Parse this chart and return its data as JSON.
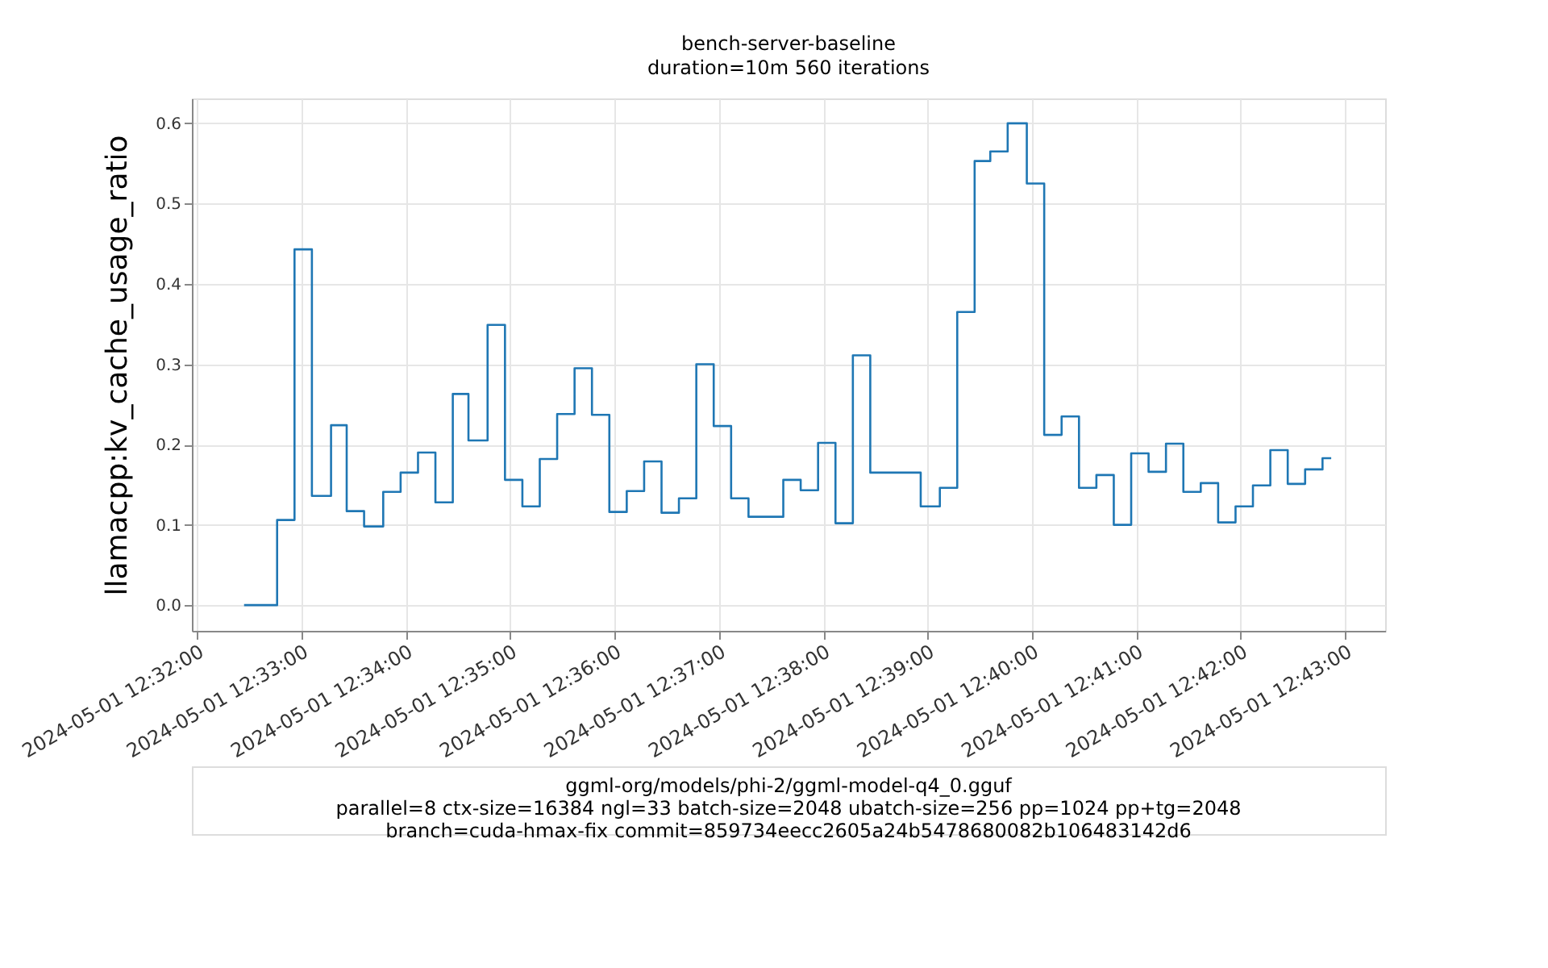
{
  "chart_data": {
    "type": "step",
    "title": "bench-server-baseline",
    "subtitle": "duration=10m 560 iterations",
    "ylabel": "llamacpp:kv_cache_usage_ratio",
    "annotations": [
      "ggml-org/models/phi-2/ggml-model-q4_0.gguf",
      "parallel=8 ctx-size=16384 ngl=33 batch-size=2048 ubatch-size=256 pp=1024 pp+tg=2048",
      "branch=cuda-hmax-fix commit=859734eecc2605a24b5478680082b106483142d6"
    ],
    "x": [
      "2024-05-01T12:32:27",
      "2024-05-01T12:32:46",
      "2024-05-01T12:32:56",
      "2024-05-01T12:33:06",
      "2024-05-01T12:33:17",
      "2024-05-01T12:33:26",
      "2024-05-01T12:33:36",
      "2024-05-01T12:33:47",
      "2024-05-01T12:33:57",
      "2024-05-01T12:34:07",
      "2024-05-01T12:34:17",
      "2024-05-01T12:34:27",
      "2024-05-01T12:34:36",
      "2024-05-01T12:34:47",
      "2024-05-01T12:34:57",
      "2024-05-01T12:35:07",
      "2024-05-01T12:35:17",
      "2024-05-01T12:35:27",
      "2024-05-01T12:35:37",
      "2024-05-01T12:35:47",
      "2024-05-01T12:35:57",
      "2024-05-01T12:36:07",
      "2024-05-01T12:36:17",
      "2024-05-01T12:36:27",
      "2024-05-01T12:36:37",
      "2024-05-01T12:36:47",
      "2024-05-01T12:36:57",
      "2024-05-01T12:37:07",
      "2024-05-01T12:37:17",
      "2024-05-01T12:37:37",
      "2024-05-01T12:37:47",
      "2024-05-01T12:37:57",
      "2024-05-01T12:38:07",
      "2024-05-01T12:38:17",
      "2024-05-01T12:38:27",
      "2024-05-01T12:38:56",
      "2024-05-01T12:39:07",
      "2024-05-01T12:39:17",
      "2024-05-01T12:39:27",
      "2024-05-01T12:39:36",
      "2024-05-01T12:39:46",
      "2024-05-01T12:39:57",
      "2024-05-01T12:40:07",
      "2024-05-01T12:40:17",
      "2024-05-01T12:40:27",
      "2024-05-01T12:40:37",
      "2024-05-01T12:40:47",
      "2024-05-01T12:40:57",
      "2024-05-01T12:41:07",
      "2024-05-01T12:41:17",
      "2024-05-01T12:41:27",
      "2024-05-01T12:41:37",
      "2024-05-01T12:41:47",
      "2024-05-01T12:41:57",
      "2024-05-01T12:42:07",
      "2024-05-01T12:42:17",
      "2024-05-01T12:42:27",
      "2024-05-01T12:42:37",
      "2024-05-01T12:42:47",
      "2024-05-01T12:42:52"
    ],
    "series": [
      {
        "color": "#1f77b4",
        "values": [
          0.0,
          0.106,
          0.443,
          0.136,
          0.224,
          0.117,
          0.098,
          0.141,
          0.165,
          0.19,
          0.128,
          0.263,
          0.205,
          0.349,
          0.156,
          0.123,
          0.182,
          0.238,
          0.295,
          0.237,
          0.116,
          0.142,
          0.179,
          0.115,
          0.133,
          0.3,
          0.223,
          0.133,
          0.11,
          0.156,
          0.143,
          0.202,
          0.102,
          0.311,
          0.165,
          0.123,
          0.146,
          0.365,
          0.553,
          0.565,
          0.6,
          0.525,
          0.212,
          0.235,
          0.146,
          0.162,
          0.1,
          0.189,
          0.166,
          0.201,
          0.141,
          0.152,
          0.103,
          0.123,
          0.149,
          0.193,
          0.151,
          0.169,
          0.183,
          0.183
        ]
      }
    ],
    "xlim": [
      "2024-05-01T12:31:57",
      "2024-05-01T12:43:23"
    ],
    "xticks": [
      {
        "value": "2024-05-01T12:32:00",
        "label": "2024-05-01 12:32:00"
      },
      {
        "value": "2024-05-01T12:33:00",
        "label": "2024-05-01 12:33:00"
      },
      {
        "value": "2024-05-01T12:34:00",
        "label": "2024-05-01 12:34:00"
      },
      {
        "value": "2024-05-01T12:35:00",
        "label": "2024-05-01 12:35:00"
      },
      {
        "value": "2024-05-01T12:36:00",
        "label": "2024-05-01 12:36:00"
      },
      {
        "value": "2024-05-01T12:37:00",
        "label": "2024-05-01 12:37:00"
      },
      {
        "value": "2024-05-01T12:38:00",
        "label": "2024-05-01 12:38:00"
      },
      {
        "value": "2024-05-01T12:39:00",
        "label": "2024-05-01 12:39:00"
      },
      {
        "value": "2024-05-01T12:40:00",
        "label": "2024-05-01 12:40:00"
      },
      {
        "value": "2024-05-01T12:41:00",
        "label": "2024-05-01 12:41:00"
      },
      {
        "value": "2024-05-01T12:42:00",
        "label": "2024-05-01 12:42:00"
      },
      {
        "value": "2024-05-01T12:43:00",
        "label": "2024-05-01 12:43:00"
      }
    ],
    "ylim": [
      -0.032,
      0.631
    ],
    "yticks": [
      {
        "value": 0.0,
        "label": "0.0"
      },
      {
        "value": 0.1,
        "label": "0.1"
      },
      {
        "value": 0.2,
        "label": "0.2"
      },
      {
        "value": 0.3,
        "label": "0.3"
      },
      {
        "value": 0.4,
        "label": "0.4"
      },
      {
        "value": 0.5,
        "label": "0.5"
      },
      {
        "value": 0.6,
        "label": "0.6"
      }
    ],
    "grid": true,
    "line_style": "solid",
    "marker": "none"
  }
}
